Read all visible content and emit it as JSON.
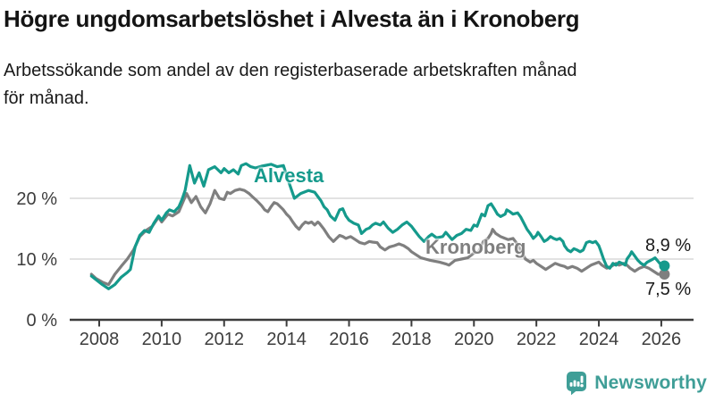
{
  "header": {
    "title": "Högre ungdomsarbetslöshet i Alvesta än i Kronoberg",
    "subtitle_lines": [
      "Arbetssökande som andel av den registerbaserade arbetskraften månad",
      "för månad."
    ]
  },
  "chart_data": {
    "type": "line",
    "title": "Högre ungdomsarbetslöshet i Alvesta än i Kronoberg",
    "subtitle": "Arbetssökande som andel av den registerbaserade arbetskraften månad för månad.",
    "xlabel": "",
    "ylabel": "",
    "y_unit": "%",
    "xlim": [
      2007.05,
      2027.05
    ],
    "ylim": [
      0,
      27.5
    ],
    "grid": "horizontal",
    "legend_position": "inline-labels",
    "x_ticks": [
      2008,
      2010,
      2012,
      2014,
      2016,
      2018,
      2020,
      2022,
      2024,
      2026
    ],
    "y_ticks": [
      {
        "value": 20,
        "label": "20 %"
      },
      {
        "value": 10,
        "label": "10 %"
      },
      {
        "value": 0,
        "label": "0 %"
      }
    ],
    "axis_color": "#3c3c3c",
    "gridline_color": "#d9d9d9",
    "series": [
      {
        "name": "Alvesta",
        "color": "#159a8c",
        "end_label": "8,9 %",
        "end_value": 8.9,
        "points": [
          [
            2007.75,
            7.2
          ],
          [
            2007.9,
            6.6
          ],
          [
            2008.1,
            5.8
          ],
          [
            2008.3,
            5.1
          ],
          [
            2008.5,
            5.8
          ],
          [
            2008.7,
            7.0
          ],
          [
            2008.9,
            7.8
          ],
          [
            2009.0,
            8.3
          ],
          [
            2009.15,
            12.0
          ],
          [
            2009.3,
            13.9
          ],
          [
            2009.45,
            14.7
          ],
          [
            2009.6,
            14.4
          ],
          [
            2009.75,
            15.9
          ],
          [
            2009.9,
            17.1
          ],
          [
            2010.0,
            16.4
          ],
          [
            2010.15,
            17.6
          ],
          [
            2010.25,
            18.1
          ],
          [
            2010.4,
            17.8
          ],
          [
            2010.55,
            18.6
          ],
          [
            2010.65,
            19.8
          ],
          [
            2010.75,
            21.3
          ],
          [
            2010.9,
            25.4
          ],
          [
            2011.05,
            22.5
          ],
          [
            2011.2,
            24.2
          ],
          [
            2011.35,
            22.0
          ],
          [
            2011.5,
            24.7
          ],
          [
            2011.7,
            25.2
          ],
          [
            2011.9,
            24.2
          ],
          [
            2012.0,
            24.9
          ],
          [
            2012.15,
            24.2
          ],
          [
            2012.3,
            24.7
          ],
          [
            2012.45,
            24.0
          ],
          [
            2012.55,
            25.4
          ],
          [
            2012.7,
            25.7
          ],
          [
            2012.85,
            25.2
          ],
          [
            2013.0,
            25.0
          ],
          [
            2013.2,
            25.3
          ],
          [
            2013.5,
            25.6
          ],
          [
            2013.7,
            25.2
          ],
          [
            2013.9,
            25.4
          ],
          [
            2014.05,
            23.0
          ],
          [
            2014.15,
            21.5
          ],
          [
            2014.25,
            20.0
          ],
          [
            2014.45,
            20.8
          ],
          [
            2014.7,
            21.3
          ],
          [
            2014.9,
            21.0
          ],
          [
            2015.0,
            20.3
          ],
          [
            2015.1,
            19.6
          ],
          [
            2015.2,
            18.6
          ],
          [
            2015.3,
            18.1
          ],
          [
            2015.4,
            17.1
          ],
          [
            2015.55,
            16.4
          ],
          [
            2015.7,
            18.1
          ],
          [
            2015.8,
            18.3
          ],
          [
            2015.9,
            17.1
          ],
          [
            2016.0,
            16.4
          ],
          [
            2016.15,
            15.9
          ],
          [
            2016.3,
            15.6
          ],
          [
            2016.4,
            14.2
          ],
          [
            2016.55,
            14.9
          ],
          [
            2016.65,
            15.1
          ],
          [
            2016.75,
            15.6
          ],
          [
            2016.85,
            15.9
          ],
          [
            2017.0,
            15.6
          ],
          [
            2017.1,
            16.1
          ],
          [
            2017.25,
            15.1
          ],
          [
            2017.4,
            14.4
          ],
          [
            2017.55,
            14.9
          ],
          [
            2017.7,
            15.6
          ],
          [
            2017.85,
            16.1
          ],
          [
            2018.0,
            15.4
          ],
          [
            2018.1,
            14.7
          ],
          [
            2018.25,
            13.7
          ],
          [
            2018.4,
            12.9
          ],
          [
            2018.55,
            13.7
          ],
          [
            2018.65,
            14.1
          ],
          [
            2018.8,
            13.5
          ],
          [
            2019.0,
            13.7
          ],
          [
            2019.1,
            14.4
          ],
          [
            2019.3,
            13.2
          ],
          [
            2019.45,
            13.9
          ],
          [
            2019.6,
            14.2
          ],
          [
            2019.75,
            14.9
          ],
          [
            2019.9,
            14.7
          ],
          [
            2020.0,
            15.6
          ],
          [
            2020.1,
            15.4
          ],
          [
            2020.25,
            17.4
          ],
          [
            2020.35,
            17.1
          ],
          [
            2020.45,
            18.8
          ],
          [
            2020.55,
            19.1
          ],
          [
            2020.65,
            18.3
          ],
          [
            2020.75,
            17.4
          ],
          [
            2020.85,
            17.0
          ],
          [
            2021.0,
            17.4
          ],
          [
            2021.05,
            18.1
          ],
          [
            2021.15,
            17.8
          ],
          [
            2021.25,
            17.4
          ],
          [
            2021.4,
            17.6
          ],
          [
            2021.5,
            16.9
          ],
          [
            2021.6,
            15.9
          ],
          [
            2021.7,
            14.9
          ],
          [
            2021.8,
            14.2
          ],
          [
            2021.9,
            13.4
          ],
          [
            2022.0,
            13.9
          ],
          [
            2022.05,
            14.4
          ],
          [
            2022.15,
            13.7
          ],
          [
            2022.25,
            12.9
          ],
          [
            2022.35,
            13.2
          ],
          [
            2022.45,
            13.7
          ],
          [
            2022.55,
            13.4
          ],
          [
            2022.65,
            13.2
          ],
          [
            2022.75,
            13.4
          ],
          [
            2022.85,
            12.9
          ],
          [
            2022.9,
            12.2
          ],
          [
            2023.0,
            11.5
          ],
          [
            2023.1,
            11.2
          ],
          [
            2023.2,
            11.7
          ],
          [
            2023.3,
            11.5
          ],
          [
            2023.4,
            11.2
          ],
          [
            2023.5,
            11.5
          ],
          [
            2023.6,
            12.7
          ],
          [
            2023.7,
            12.9
          ],
          [
            2023.8,
            12.7
          ],
          [
            2023.9,
            12.9
          ],
          [
            2024.0,
            12.2
          ],
          [
            2024.05,
            11.5
          ],
          [
            2024.15,
            10.0
          ],
          [
            2024.25,
            8.8
          ],
          [
            2024.35,
            8.5
          ],
          [
            2024.45,
            9.3
          ],
          [
            2024.55,
            9.0
          ],
          [
            2024.65,
            9.5
          ],
          [
            2024.75,
            9.3
          ],
          [
            2024.85,
            9.0
          ],
          [
            2024.9,
            10.0
          ],
          [
            2025.0,
            10.7
          ],
          [
            2025.05,
            11.2
          ],
          [
            2025.15,
            10.5
          ],
          [
            2025.25,
            9.8
          ],
          [
            2025.35,
            9.3
          ],
          [
            2025.45,
            9.0
          ],
          [
            2025.55,
            9.5
          ],
          [
            2025.7,
            9.9
          ],
          [
            2025.8,
            10.2
          ],
          [
            2025.95,
            9.3
          ],
          [
            2026.1,
            8.9
          ]
        ]
      },
      {
        "name": "Kronoberg",
        "color": "#7f7f7f",
        "end_label": "7,5 %",
        "end_value": 7.5,
        "points": [
          [
            2007.75,
            7.5
          ],
          [
            2007.9,
            6.8
          ],
          [
            2008.1,
            6.2
          ],
          [
            2008.3,
            5.8
          ],
          [
            2008.5,
            7.5
          ],
          [
            2008.7,
            8.8
          ],
          [
            2008.9,
            10.0
          ],
          [
            2009.1,
            11.5
          ],
          [
            2009.3,
            13.7
          ],
          [
            2009.5,
            14.7
          ],
          [
            2009.7,
            15.4
          ],
          [
            2009.9,
            16.9
          ],
          [
            2010.0,
            16.1
          ],
          [
            2010.2,
            17.4
          ],
          [
            2010.35,
            17.1
          ],
          [
            2010.55,
            17.8
          ],
          [
            2010.7,
            19.6
          ],
          [
            2010.8,
            20.8
          ],
          [
            2010.95,
            19.3
          ],
          [
            2011.1,
            20.3
          ],
          [
            2011.25,
            18.6
          ],
          [
            2011.4,
            17.6
          ],
          [
            2011.55,
            19.1
          ],
          [
            2011.7,
            21.3
          ],
          [
            2011.85,
            20.0
          ],
          [
            2012.0,
            19.8
          ],
          [
            2012.1,
            21.0
          ],
          [
            2012.2,
            20.8
          ],
          [
            2012.35,
            21.3
          ],
          [
            2012.5,
            21.5
          ],
          [
            2012.65,
            21.3
          ],
          [
            2012.8,
            20.8
          ],
          [
            2012.9,
            20.3
          ],
          [
            2013.05,
            19.6
          ],
          [
            2013.2,
            18.8
          ],
          [
            2013.3,
            18.1
          ],
          [
            2013.4,
            17.8
          ],
          [
            2013.5,
            18.6
          ],
          [
            2013.6,
            19.3
          ],
          [
            2013.7,
            19.1
          ],
          [
            2013.8,
            18.6
          ],
          [
            2013.9,
            18.1
          ],
          [
            2014.0,
            17.4
          ],
          [
            2014.1,
            16.9
          ],
          [
            2014.2,
            16.1
          ],
          [
            2014.3,
            15.4
          ],
          [
            2014.4,
            14.9
          ],
          [
            2014.5,
            15.6
          ],
          [
            2014.6,
            16.1
          ],
          [
            2014.7,
            15.9
          ],
          [
            2014.8,
            16.1
          ],
          [
            2014.9,
            15.6
          ],
          [
            2015.0,
            16.1
          ],
          [
            2015.05,
            15.9
          ],
          [
            2015.2,
            14.9
          ],
          [
            2015.35,
            13.7
          ],
          [
            2015.5,
            12.9
          ],
          [
            2015.6,
            13.4
          ],
          [
            2015.7,
            13.9
          ],
          [
            2015.8,
            13.7
          ],
          [
            2015.9,
            13.4
          ],
          [
            2016.05,
            13.7
          ],
          [
            2016.2,
            13.2
          ],
          [
            2016.35,
            12.7
          ],
          [
            2016.5,
            12.5
          ],
          [
            2016.65,
            12.9
          ],
          [
            2016.75,
            12.8
          ],
          [
            2016.9,
            12.7
          ],
          [
            2017.0,
            12.0
          ],
          [
            2017.15,
            11.5
          ],
          [
            2017.3,
            12.0
          ],
          [
            2017.45,
            12.2
          ],
          [
            2017.6,
            12.5
          ],
          [
            2017.75,
            12.2
          ],
          [
            2017.9,
            11.7
          ],
          [
            2018.0,
            11.2
          ],
          [
            2018.15,
            10.7
          ],
          [
            2018.3,
            10.2
          ],
          [
            2018.45,
            10.0
          ],
          [
            2018.6,
            9.8
          ],
          [
            2018.9,
            9.5
          ],
          [
            2019.1,
            9.2
          ],
          [
            2019.2,
            9.0
          ],
          [
            2019.4,
            9.8
          ],
          [
            2019.6,
            10.0
          ],
          [
            2019.8,
            10.2
          ],
          [
            2020.0,
            11.0
          ],
          [
            2020.15,
            11.2
          ],
          [
            2020.3,
            12.9
          ],
          [
            2020.45,
            13.4
          ],
          [
            2020.55,
            14.2
          ],
          [
            2020.6,
            14.9
          ],
          [
            2020.7,
            14.2
          ],
          [
            2020.85,
            13.7
          ],
          [
            2021.0,
            13.4
          ],
          [
            2021.1,
            13.2
          ],
          [
            2021.25,
            13.4
          ],
          [
            2021.4,
            12.4
          ],
          [
            2021.55,
            11.0
          ],
          [
            2021.65,
            10.0
          ],
          [
            2021.8,
            9.5
          ],
          [
            2021.9,
            9.8
          ],
          [
            2022.0,
            9.3
          ],
          [
            2022.15,
            8.8
          ],
          [
            2022.3,
            8.3
          ],
          [
            2022.45,
            8.8
          ],
          [
            2022.6,
            9.3
          ],
          [
            2022.75,
            9.0
          ],
          [
            2022.9,
            8.8
          ],
          [
            2023.0,
            8.5
          ],
          [
            2023.15,
            8.8
          ],
          [
            2023.3,
            8.5
          ],
          [
            2023.45,
            8.0
          ],
          [
            2023.6,
            8.5
          ],
          [
            2023.75,
            9.0
          ],
          [
            2023.9,
            9.3
          ],
          [
            2024.0,
            9.5
          ],
          [
            2024.1,
            9.0
          ],
          [
            2024.25,
            8.5
          ],
          [
            2024.4,
            8.8
          ],
          [
            2024.55,
            9.3
          ],
          [
            2024.65,
            9.0
          ],
          [
            2024.8,
            9.3
          ],
          [
            2024.9,
            9.0
          ],
          [
            2025.0,
            8.5
          ],
          [
            2025.15,
            8.0
          ],
          [
            2025.3,
            8.5
          ],
          [
            2025.45,
            8.8
          ],
          [
            2025.6,
            8.5
          ],
          [
            2025.75,
            8.0
          ],
          [
            2025.9,
            7.5
          ],
          [
            2026.1,
            7.5
          ]
        ]
      }
    ]
  },
  "footer": {
    "brand": "Newsworthy",
    "brand_color": "#3f9e97",
    "logo_icon": "bar-chart-speech-bubble"
  }
}
